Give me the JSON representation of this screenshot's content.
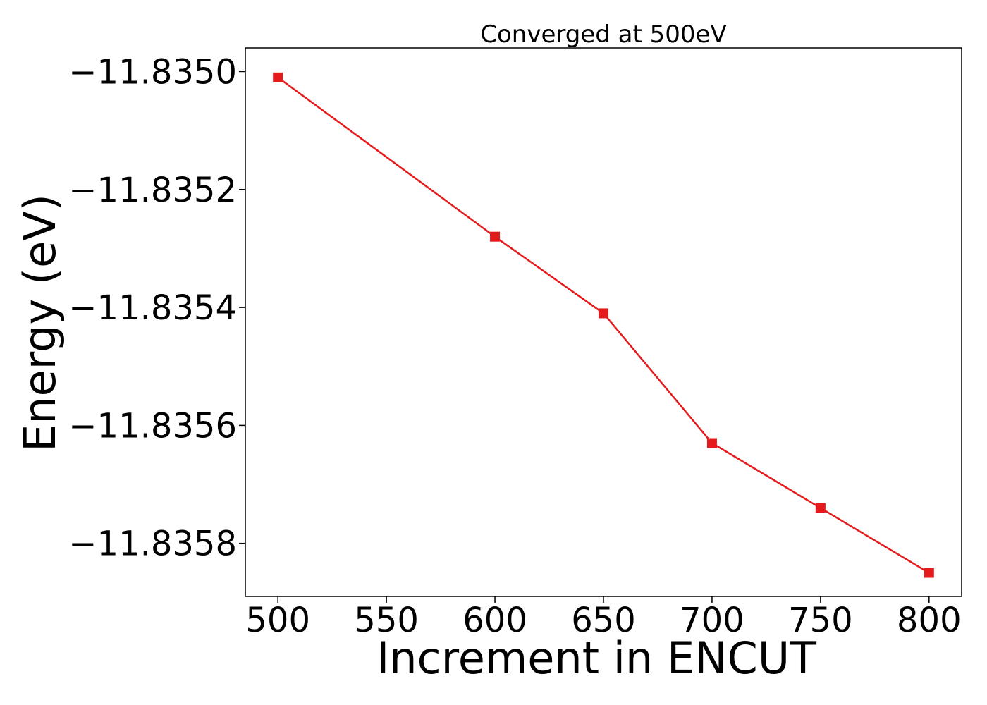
{
  "chart_data": {
    "type": "line",
    "title": "Converged at 500eV",
    "xlabel": "Increment in ENCUT",
    "ylabel": "Energy (eV)",
    "x": [
      500,
      600,
      650,
      700,
      750,
      800
    ],
    "series": [
      {
        "values": [
          -11.83501,
          -11.83528,
          -11.83541,
          -11.83563,
          -11.83574,
          -11.83585
        ],
        "color": "#e41a1c",
        "marker": "square"
      }
    ],
    "xlim": [
      485,
      815
    ],
    "ylim": [
      -11.83589,
      -11.83496
    ],
    "x_ticks": [
      500,
      550,
      600,
      650,
      700,
      750,
      800
    ],
    "x_tick_labels": [
      "500",
      "550",
      "600",
      "650",
      "700",
      "750",
      "800"
    ],
    "y_ticks": [
      -11.835,
      -11.8352,
      -11.8354,
      -11.8356,
      -11.8358
    ],
    "y_tick_labels": [
      "−11.8350",
      "−11.8352",
      "−11.8354",
      "−11.8356",
      "−11.8358"
    ],
    "grid": false,
    "legend": "none"
  }
}
